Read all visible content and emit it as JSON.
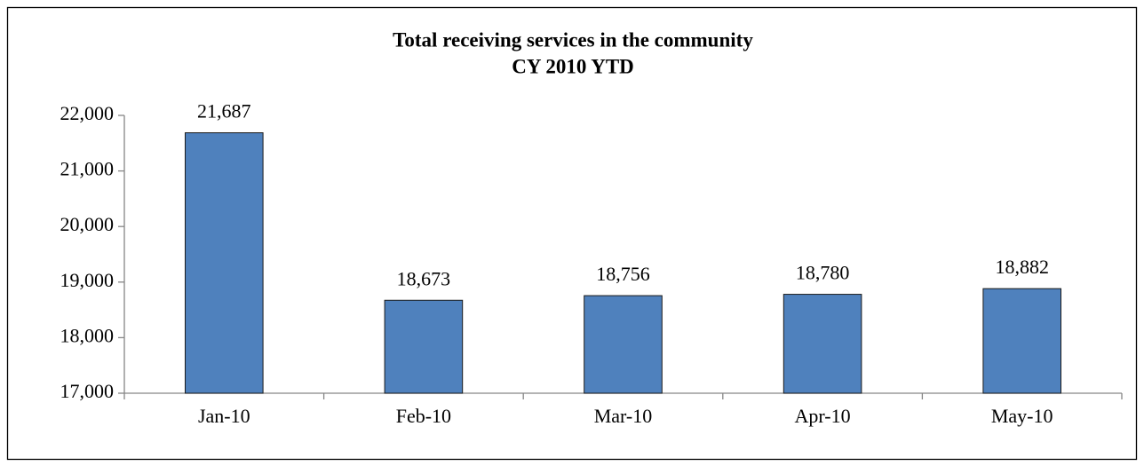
{
  "chart_data": {
    "type": "bar",
    "title": [
      "Total receiving services in the community",
      "CY 2010 YTD"
    ],
    "categories": [
      "Jan-10",
      "Feb-10",
      "Mar-10",
      "Apr-10",
      "May-10"
    ],
    "values": [
      21687,
      18673,
      18756,
      18780,
      18882
    ],
    "value_labels": [
      "21,687",
      "18,673",
      "18,756",
      "18,780",
      "18,882"
    ],
    "color": "#4f81bd",
    "ylim": [
      17000,
      22000
    ],
    "yticks": [
      {
        "value": 17000,
        "label": "17,000"
      },
      {
        "value": 18000,
        "label": "18,000"
      },
      {
        "value": 19000,
        "label": "19,000"
      },
      {
        "value": 20000,
        "label": "20,000"
      },
      {
        "value": 21000,
        "label": "21,000"
      },
      {
        "value": 22000,
        "label": "22,000"
      }
    ],
    "grid": false
  }
}
